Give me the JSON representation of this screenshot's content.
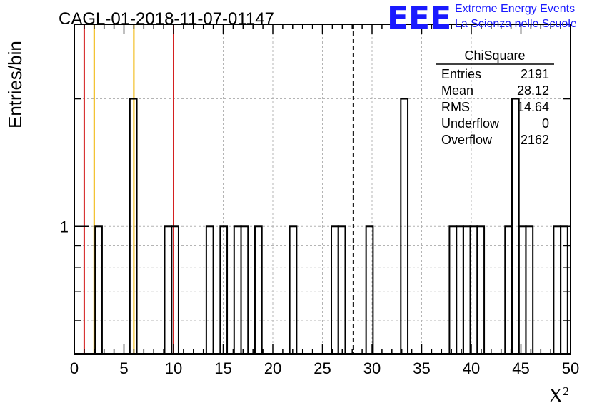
{
  "chart_data": {
    "type": "bar",
    "title": "CAGL-01-2018-11-07-01147",
    "xlabel": "X",
    "xlabel_superscript": "2",
    "ylabel": "Entries/bin",
    "xlim": [
      0,
      50
    ],
    "ylim": [
      0.5,
      3
    ],
    "y_log": true,
    "grid": true,
    "x_ticks": [
      0,
      5,
      10,
      15,
      20,
      25,
      30,
      35,
      40,
      45,
      50
    ],
    "y_tick_labels": [
      {
        "value": 1,
        "label": "1"
      }
    ],
    "bin_width": 0.7,
    "bins": [
      {
        "x": 2.1,
        "value": 1
      },
      {
        "x": 5.6,
        "value": 2
      },
      {
        "x": 9.1,
        "value": 1
      },
      {
        "x": 9.8,
        "value": 1
      },
      {
        "x": 13.3,
        "value": 1
      },
      {
        "x": 14.7,
        "value": 1
      },
      {
        "x": 16.1,
        "value": 1
      },
      {
        "x": 16.8,
        "value": 1
      },
      {
        "x": 18.2,
        "value": 1
      },
      {
        "x": 21.7,
        "value": 1
      },
      {
        "x": 25.9,
        "value": 1
      },
      {
        "x": 26.6,
        "value": 1
      },
      {
        "x": 29.4,
        "value": 1
      },
      {
        "x": 32.9,
        "value": 2
      },
      {
        "x": 37.8,
        "value": 1
      },
      {
        "x": 38.5,
        "value": 1
      },
      {
        "x": 39.2,
        "value": 1
      },
      {
        "x": 39.9,
        "value": 1
      },
      {
        "x": 40.6,
        "value": 1
      },
      {
        "x": 43.4,
        "value": 1
      },
      {
        "x": 44.1,
        "value": 2
      },
      {
        "x": 44.8,
        "value": 1
      },
      {
        "x": 45.5,
        "value": 1
      },
      {
        "x": 48.3,
        "value": 1
      },
      {
        "x": 49.0,
        "value": 1
      }
    ],
    "vertical_lines": [
      {
        "x": 1.0,
        "color": "#d42020",
        "style": "solid"
      },
      {
        "x": 2.0,
        "color": "#f0b400",
        "style": "solid"
      },
      {
        "x": 6.0,
        "color": "#f0b400",
        "style": "solid"
      },
      {
        "x": 10.0,
        "color": "#d42020",
        "style": "solid"
      },
      {
        "x": 28.12,
        "color": "#000000",
        "style": "dashed"
      }
    ],
    "stats_box": {
      "title": "ChiSquare",
      "rows": [
        {
          "label": "Entries",
          "value": "2191"
        },
        {
          "label": "Mean",
          "value": "28.12"
        },
        {
          "label": "RMS",
          "value": "14.64"
        },
        {
          "label": "Underflow",
          "value": "0"
        },
        {
          "label": "Overflow",
          "value": "2162"
        }
      ]
    }
  },
  "logo": {
    "mark": "EEE",
    "line1": "Extreme Energy Events",
    "line2": "La Scienza nelle Scuole"
  }
}
